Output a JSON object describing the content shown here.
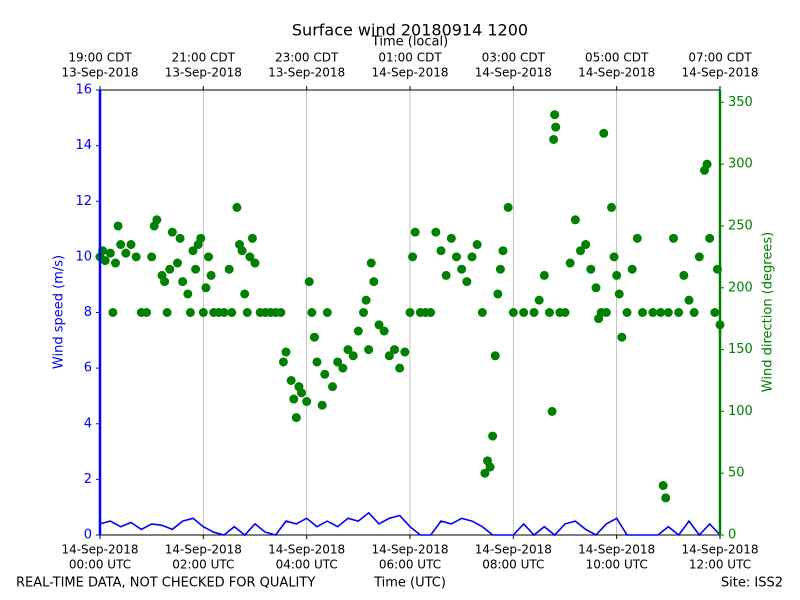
{
  "chart_data": {
    "type": "line",
    "title": "Surface wind 20180914 1200",
    "x2label": "Time (local)",
    "xlabel": "Time (UTC)",
    "ylabel": "Wind speed (m/s)",
    "y2label": "Wind direction (degrees)",
    "footer_left": "REAL-TIME DATA, NOT CHECKED FOR QUALITY",
    "footer_right": "Site: ISS2",
    "grid": true,
    "xlim": [
      0,
      12
    ],
    "xticks": [
      {
        "value": 0,
        "date": "14-Sep-2018",
        "label": "00:00 UTC"
      },
      {
        "value": 2,
        "date": "14-Sep-2018",
        "label": "02:00 UTC"
      },
      {
        "value": 4,
        "date": "14-Sep-2018",
        "label": "04:00 UTC"
      },
      {
        "value": 6,
        "date": "14-Sep-2018",
        "label": "06:00 UTC"
      },
      {
        "value": 8,
        "date": "14-Sep-2018",
        "label": "08:00 UTC"
      },
      {
        "value": 10,
        "date": "14-Sep-2018",
        "label": "10:00 UTC"
      },
      {
        "value": 12,
        "date": "14-Sep-2018",
        "label": "12:00 UTC"
      }
    ],
    "x2ticks": [
      {
        "value": 0,
        "label": "19:00 CDT",
        "date": "13-Sep-2018"
      },
      {
        "value": 2,
        "label": "21:00 CDT",
        "date": "13-Sep-2018"
      },
      {
        "value": 4,
        "label": "23:00 CDT",
        "date": "13-Sep-2018"
      },
      {
        "value": 6,
        "label": "01:00 CDT",
        "date": "14-Sep-2018"
      },
      {
        "value": 8,
        "label": "03:00 CDT",
        "date": "14-Sep-2018"
      },
      {
        "value": 10,
        "label": "05:00 CDT",
        "date": "14-Sep-2018"
      },
      {
        "value": 12,
        "label": "07:00 CDT",
        "date": "14-Sep-2018"
      }
    ],
    "ylim": [
      0,
      16
    ],
    "yticks": [
      0,
      2,
      4,
      6,
      8,
      10,
      12,
      14,
      16
    ],
    "y2lim": [
      0,
      360
    ],
    "y2ticks": [
      0,
      50,
      100,
      150,
      200,
      250,
      300,
      350
    ],
    "ycolor": "#0000ff",
    "y2color": "#008000",
    "series": [
      {
        "type": "line",
        "color": "#0000ff",
        "x": [
          0,
          0.2,
          0.4,
          0.6,
          0.8,
          1,
          1.2,
          1.4,
          1.6,
          1.8,
          2,
          2.2,
          2.4,
          2.6,
          2.8,
          3,
          3.2,
          3.4,
          3.6,
          3.8,
          4,
          4.2,
          4.4,
          4.6,
          4.8,
          5,
          5.2,
          5.4,
          5.6,
          5.8,
          6,
          6.2,
          6.4,
          6.6,
          6.8,
          7,
          7.2,
          7.4,
          7.6,
          7.8,
          8,
          8.2,
          8.4,
          8.6,
          8.8,
          9,
          9.2,
          9.4,
          9.6,
          9.8,
          10,
          10.2,
          10.4,
          10.6,
          10.8,
          11,
          11.2,
          11.4,
          11.6,
          11.8,
          12
        ],
        "values": [
          0.4,
          0.5,
          0.3,
          0.45,
          0.2,
          0.4,
          0.35,
          0.2,
          0.5,
          0.6,
          0.3,
          0.1,
          0,
          0.3,
          0,
          0.4,
          0.1,
          0,
          0.5,
          0.4,
          0.6,
          0.3,
          0.5,
          0.3,
          0.6,
          0.5,
          0.8,
          0.4,
          0.6,
          0.7,
          0.3,
          0,
          0,
          0.5,
          0.4,
          0.6,
          0.5,
          0.3,
          0,
          0,
          0,
          0.4,
          0,
          0.3,
          0,
          0.4,
          0.5,
          0.2,
          0,
          0.4,
          0.6,
          0,
          0,
          0,
          0,
          0.3,
          0,
          0.5,
          0,
          0.4,
          0
        ]
      },
      {
        "type": "scatter",
        "axis": "y2",
        "color": "#008000",
        "x": [
          0,
          0.05,
          0.1,
          0.2,
          0.25,
          0.3,
          0.35,
          0.4,
          0.5,
          0.6,
          0.7,
          0.8,
          0.9,
          1,
          1.05,
          1.1,
          1.2,
          1.25,
          1.3,
          1.35,
          1.4,
          1.5,
          1.55,
          1.6,
          1.7,
          1.75,
          1.8,
          1.85,
          1.9,
          1.95,
          2,
          2.05,
          2.1,
          2.15,
          2.2,
          2.3,
          2.4,
          2.5,
          2.55,
          2.65,
          2.7,
          2.75,
          2.8,
          2.85,
          2.9,
          2.95,
          3,
          3.1,
          3.2,
          3.3,
          3.4,
          3.5,
          3.55,
          3.6,
          3.7,
          3.75,
          3.8,
          3.85,
          3.9,
          4,
          4.05,
          4.1,
          4.15,
          4.2,
          4.3,
          4.35,
          4.4,
          4.5,
          4.6,
          4.7,
          4.8,
          4.9,
          5,
          5.1,
          5.15,
          5.2,
          5.25,
          5.3,
          5.4,
          5.5,
          5.6,
          5.7,
          5.8,
          5.9,
          6,
          6.05,
          6.1,
          6.2,
          6.3,
          6.4,
          6.5,
          6.6,
          6.7,
          6.8,
          6.9,
          7,
          7.1,
          7.2,
          7.3,
          7.4,
          7.45,
          7.5,
          7.55,
          7.6,
          7.65,
          7.7,
          7.75,
          7.8,
          7.9,
          8,
          8.2,
          8.4,
          8.5,
          8.6,
          8.7,
          8.75,
          8.78,
          8.8,
          8.82,
          8.9,
          9,
          9.1,
          9.2,
          9.3,
          9.4,
          9.5,
          9.6,
          9.65,
          9.7,
          9.75,
          9.8,
          9.9,
          9.95,
          10,
          10.05,
          10.1,
          10.2,
          10.3,
          10.4,
          10.5,
          10.7,
          10.85,
          10.9,
          10.95,
          11,
          11.1,
          11.2,
          11.3,
          11.4,
          11.5,
          11.6,
          11.7,
          11.75,
          11.8,
          11.9,
          11.95,
          12
        ],
        "values": [
          225,
          230,
          222,
          228,
          180,
          220,
          250,
          235,
          228,
          235,
          225,
          180,
          180,
          225,
          250,
          255,
          210,
          205,
          180,
          215,
          245,
          220,
          240,
          205,
          195,
          180,
          230,
          215,
          235,
          240,
          180,
          200,
          225,
          210,
          180,
          180,
          180,
          215,
          180,
          265,
          235,
          230,
          195,
          180,
          225,
          240,
          220,
          180,
          180,
          180,
          180,
          180,
          140,
          148,
          125,
          110,
          95,
          120,
          115,
          108,
          205,
          180,
          160,
          140,
          105,
          130,
          180,
          120,
          140,
          135,
          150,
          145,
          165,
          180,
          190,
          150,
          220,
          205,
          170,
          165,
          145,
          150,
          135,
          148,
          180,
          225,
          245,
          180,
          180,
          180,
          245,
          230,
          210,
          240,
          225,
          215,
          205,
          225,
          235,
          180,
          50,
          60,
          55,
          80,
          145,
          195,
          215,
          230,
          265,
          180,
          180,
          180,
          190,
          210,
          180,
          100,
          320,
          340,
          330,
          180,
          180,
          220,
          255,
          230,
          235,
          215,
          200,
          175,
          180,
          325,
          180,
          265,
          225,
          210,
          195,
          160,
          180,
          215,
          240,
          180,
          180,
          180,
          40,
          30,
          180,
          240,
          180,
          210,
          190,
          180,
          225,
          295,
          300,
          240,
          180,
          215,
          170
        ]
      }
    ]
  }
}
